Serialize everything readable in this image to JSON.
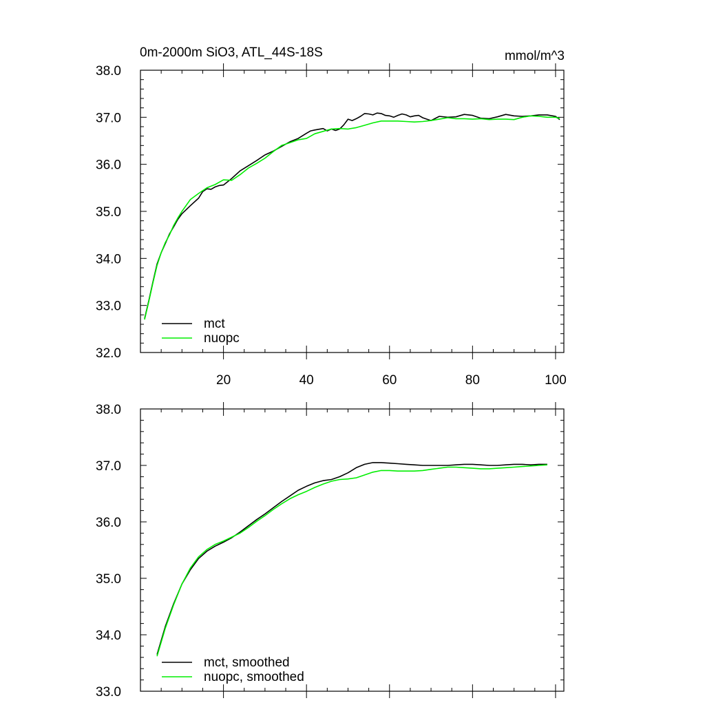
{
  "chart_data": [
    {
      "type": "line",
      "title": "0m-2000m SiO3, ATL_44S-18S",
      "units": "mmol/m^3",
      "xlim": [
        0,
        102
      ],
      "ylim": [
        32.0,
        38.0
      ],
      "x_ticks": [
        20,
        40,
        60,
        80,
        100
      ],
      "x_tick_labels": [
        "20",
        "40",
        "60",
        "80",
        "100"
      ],
      "y_ticks": [
        32.0,
        33.0,
        34.0,
        35.0,
        36.0,
        37.0,
        38.0
      ],
      "y_tick_labels": [
        "32.0",
        "33.0",
        "34.0",
        "35.0",
        "36.0",
        "37.0",
        "38.0"
      ],
      "legend_position": "bottom-left",
      "grid": false,
      "series": [
        {
          "name": "mct",
          "color": "#000000",
          "x": [
            1,
            2,
            3,
            4,
            5,
            6,
            7,
            8,
            9,
            10,
            12,
            14,
            15,
            16,
            17,
            18,
            19,
            20,
            22,
            24,
            26,
            28,
            30,
            32,
            34,
            36,
            38,
            40,
            41,
            42,
            44,
            45,
            46,
            47,
            48,
            49,
            50,
            51,
            52,
            53,
            54,
            55,
            56,
            57,
            58,
            59,
            60,
            61,
            62,
            63,
            64,
            65,
            66,
            67,
            68,
            69,
            70,
            72,
            74,
            76,
            78,
            80,
            82,
            84,
            86,
            88,
            90,
            92,
            94,
            96,
            98,
            100,
            101
          ],
          "y": [
            32.72,
            33.1,
            33.5,
            33.88,
            34.12,
            34.32,
            34.52,
            34.67,
            34.83,
            34.95,
            35.12,
            35.28,
            35.42,
            35.48,
            35.47,
            35.52,
            35.55,
            35.56,
            35.7,
            35.86,
            35.97,
            36.08,
            36.2,
            36.28,
            36.38,
            36.48,
            36.55,
            36.66,
            36.71,
            36.73,
            36.76,
            36.71,
            36.75,
            36.72,
            36.75,
            36.84,
            36.96,
            36.93,
            36.97,
            37.02,
            37.08,
            37.07,
            37.05,
            37.09,
            37.08,
            37.04,
            37.03,
            37.0,
            37.04,
            37.07,
            37.05,
            37.01,
            37.03,
            37.04,
            36.99,
            36.96,
            36.93,
            37.02,
            37.0,
            37.01,
            37.06,
            37.04,
            36.98,
            36.97,
            37.01,
            37.06,
            37.03,
            37.02,
            37.03,
            37.05,
            37.05,
            37.02,
            36.95
          ]
        },
        {
          "name": "nuopc",
          "color": "#00ee00",
          "x": [
            1,
            2,
            3,
            4,
            5,
            6,
            7,
            8,
            9,
            10,
            12,
            14,
            16,
            18,
            20,
            22,
            24,
            26,
            28,
            30,
            32,
            34,
            36,
            38,
            40,
            42,
            44,
            46,
            48,
            50,
            52,
            54,
            56,
            58,
            60,
            62,
            64,
            66,
            68,
            70,
            72,
            74,
            76,
            78,
            80,
            82,
            84,
            86,
            88,
            90,
            92,
            94,
            96,
            98,
            100,
            101
          ],
          "y": [
            32.7,
            33.08,
            33.48,
            33.85,
            34.12,
            34.34,
            34.5,
            34.7,
            34.86,
            35.0,
            35.25,
            35.38,
            35.5,
            35.57,
            35.67,
            35.66,
            35.78,
            35.92,
            36.02,
            36.13,
            36.27,
            36.4,
            36.46,
            36.52,
            36.55,
            36.65,
            36.7,
            36.75,
            36.76,
            36.75,
            36.78,
            36.83,
            36.88,
            36.92,
            36.92,
            36.92,
            36.91,
            36.9,
            36.91,
            36.93,
            36.96,
            36.99,
            36.97,
            36.97,
            36.96,
            36.97,
            36.95,
            36.96,
            36.96,
            36.95,
            37.0,
            37.03,
            37.02,
            37.0,
            37.0,
            36.97
          ]
        }
      ]
    },
    {
      "type": "line",
      "xlim": [
        0,
        102
      ],
      "ylim": [
        33.0,
        38.0
      ],
      "x_ticks": [
        20,
        40,
        60,
        80,
        100
      ],
      "y_ticks": [
        33.0,
        34.0,
        35.0,
        36.0,
        37.0,
        38.0
      ],
      "y_tick_labels": [
        "33.0",
        "34.0",
        "35.0",
        "36.0",
        "37.0",
        "38.0"
      ],
      "legend_position": "bottom-left",
      "grid": false,
      "series": [
        {
          "name": "mct, smoothed",
          "color": "#000000",
          "x": [
            4,
            6,
            8,
            10,
            12,
            14,
            16,
            18,
            20,
            22,
            24,
            26,
            28,
            30,
            32,
            34,
            36,
            38,
            40,
            42,
            44,
            46,
            48,
            50,
            52,
            54,
            56,
            58,
            60,
            62,
            64,
            66,
            68,
            70,
            72,
            74,
            76,
            78,
            80,
            82,
            84,
            86,
            88,
            90,
            92,
            94,
            96,
            98
          ],
          "y": [
            33.65,
            34.15,
            34.55,
            34.9,
            35.15,
            35.35,
            35.48,
            35.57,
            35.64,
            35.72,
            35.82,
            35.93,
            36.04,
            36.14,
            36.25,
            36.36,
            36.46,
            36.56,
            36.63,
            36.69,
            36.73,
            36.75,
            36.8,
            36.87,
            36.96,
            37.02,
            37.05,
            37.05,
            37.04,
            37.03,
            37.02,
            37.01,
            37.0,
            37.0,
            37.0,
            37.0,
            37.01,
            37.02,
            37.02,
            37.01,
            37.0,
            37.0,
            37.01,
            37.02,
            37.02,
            37.01,
            37.02,
            37.02
          ]
        },
        {
          "name": "nuopc, smoothed",
          "color": "#00ee00",
          "x": [
            4,
            6,
            8,
            10,
            12,
            14,
            16,
            18,
            20,
            22,
            24,
            26,
            28,
            30,
            32,
            34,
            36,
            38,
            40,
            42,
            44,
            46,
            48,
            50,
            52,
            54,
            56,
            58,
            60,
            62,
            64,
            66,
            68,
            70,
            72,
            74,
            76,
            78,
            80,
            82,
            84,
            86,
            88,
            90,
            92,
            94,
            96,
            98
          ],
          "y": [
            33.62,
            34.12,
            34.53,
            34.9,
            35.18,
            35.38,
            35.51,
            35.6,
            35.66,
            35.73,
            35.8,
            35.9,
            36.01,
            36.11,
            36.22,
            36.32,
            36.41,
            36.48,
            36.54,
            36.61,
            36.67,
            36.72,
            36.75,
            36.76,
            36.78,
            36.83,
            36.88,
            36.91,
            36.91,
            36.9,
            36.9,
            36.9,
            36.91,
            36.93,
            36.95,
            36.97,
            36.97,
            36.96,
            36.95,
            36.94,
            36.94,
            36.95,
            36.96,
            36.97,
            36.98,
            36.99,
            37.0,
            37.01
          ]
        }
      ]
    }
  ]
}
